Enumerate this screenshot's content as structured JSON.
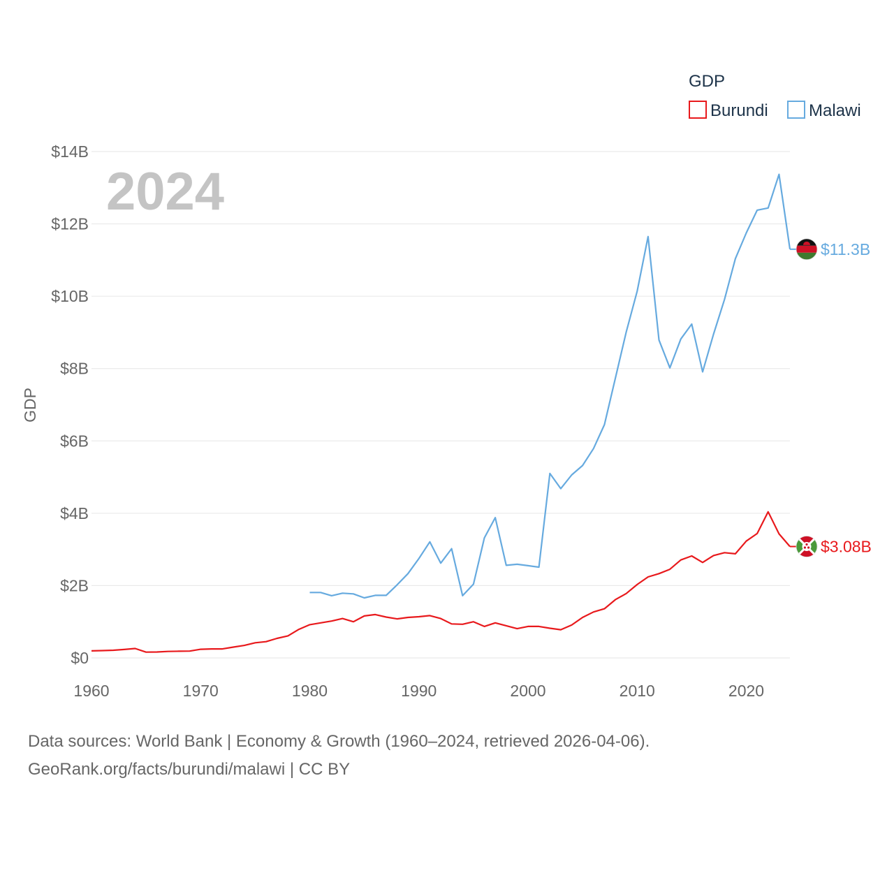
{
  "chart_data": {
    "type": "line",
    "title": "GDP",
    "year_label": "2024",
    "ylabel": "GDP",
    "xlabel": "",
    "xlim": [
      1960,
      2024
    ],
    "ylim": [
      0,
      14000000000
    ],
    "x_ticks": [
      1960,
      1970,
      1980,
      1990,
      2000,
      2010,
      2020
    ],
    "y_ticks": [
      {
        "value": 0,
        "label": "$0"
      },
      {
        "value": 2000000000,
        "label": "$2B"
      },
      {
        "value": 4000000000,
        "label": "$4B"
      },
      {
        "value": 6000000000,
        "label": "$6B"
      },
      {
        "value": 8000000000,
        "label": "$8B"
      },
      {
        "value": 10000000000,
        "label": "$10B"
      },
      {
        "value": 12000000000,
        "label": "$12B"
      },
      {
        "value": 14000000000,
        "label": "$14B"
      }
    ],
    "grid": true,
    "legend_position": "top-right",
    "series": [
      {
        "name": "Burundi",
        "color": "#e8191c",
        "end_label": "$3.08B",
        "flag_icon": "burundi-flag-icon",
        "x": [
          1960,
          1961,
          1962,
          1963,
          1964,
          1965,
          1966,
          1967,
          1968,
          1969,
          1970,
          1971,
          1972,
          1973,
          1974,
          1975,
          1976,
          1977,
          1978,
          1979,
          1980,
          1981,
          1982,
          1983,
          1984,
          1985,
          1986,
          1987,
          1988,
          1989,
          1990,
          1991,
          1992,
          1993,
          1994,
          1995,
          1996,
          1997,
          1998,
          1999,
          2000,
          2001,
          2002,
          2003,
          2004,
          2005,
          2006,
          2007,
          2008,
          2009,
          2010,
          2011,
          2012,
          2013,
          2014,
          2015,
          2016,
          2017,
          2018,
          2019,
          2020,
          2021,
          2022,
          2023,
          2024
        ],
        "values": [
          0.196,
          0.203,
          0.213,
          0.233,
          0.26,
          0.16,
          0.165,
          0.18,
          0.185,
          0.19,
          0.24,
          0.25,
          0.25,
          0.3,
          0.345,
          0.42,
          0.45,
          0.54,
          0.61,
          0.79,
          0.92,
          0.97,
          1.02,
          1.09,
          1.0,
          1.16,
          1.2,
          1.13,
          1.08,
          1.12,
          1.14,
          1.17,
          1.09,
          0.94,
          0.93,
          1.0,
          0.87,
          0.97,
          0.89,
          0.81,
          0.87,
          0.87,
          0.82,
          0.78,
          0.91,
          1.12,
          1.27,
          1.36,
          1.61,
          1.78,
          2.03,
          2.24,
          2.33,
          2.45,
          2.71,
          2.82,
          2.64,
          2.83,
          2.91,
          2.88,
          3.23,
          3.44,
          4.04,
          3.43,
          3.08
        ]
      },
      {
        "name": "Malawi",
        "color": "#66aadf",
        "end_label": "$11.3B",
        "flag_icon": "malawi-flag-icon",
        "x": [
          1980,
          1981,
          1982,
          1983,
          1984,
          1985,
          1986,
          1987,
          1988,
          1989,
          1990,
          1991,
          1992,
          1993,
          1994,
          1995,
          1996,
          1997,
          1998,
          1999,
          2000,
          2001,
          2002,
          2003,
          2004,
          2005,
          2006,
          2007,
          2008,
          2009,
          2010,
          2011,
          2012,
          2013,
          2014,
          2015,
          2016,
          2017,
          2018,
          2019,
          2020,
          2021,
          2022,
          2023,
          2024
        ],
        "values": [
          1.81,
          1.81,
          1.72,
          1.79,
          1.77,
          1.66,
          1.73,
          1.73,
          2.02,
          2.33,
          2.75,
          3.21,
          2.62,
          3.02,
          1.72,
          2.04,
          3.32,
          3.88,
          2.56,
          2.59,
          2.55,
          2.51,
          5.1,
          4.68,
          5.06,
          5.32,
          5.79,
          6.45,
          7.73,
          9.01,
          10.14,
          11.65,
          8.79,
          8.02,
          8.82,
          9.23,
          7.91,
          8.95,
          9.91,
          11.04,
          11.75,
          12.38,
          12.44,
          13.37,
          11.3
        ]
      }
    ],
    "value_unit_multiplier": 1000000000
  },
  "footer": {
    "sources": "Data sources: World Bank | Economy & Growth (1960–2024, retrieved 2026-04-06).",
    "credit": "GeoRank.org/facts/burundi/malawi | CC BY"
  }
}
